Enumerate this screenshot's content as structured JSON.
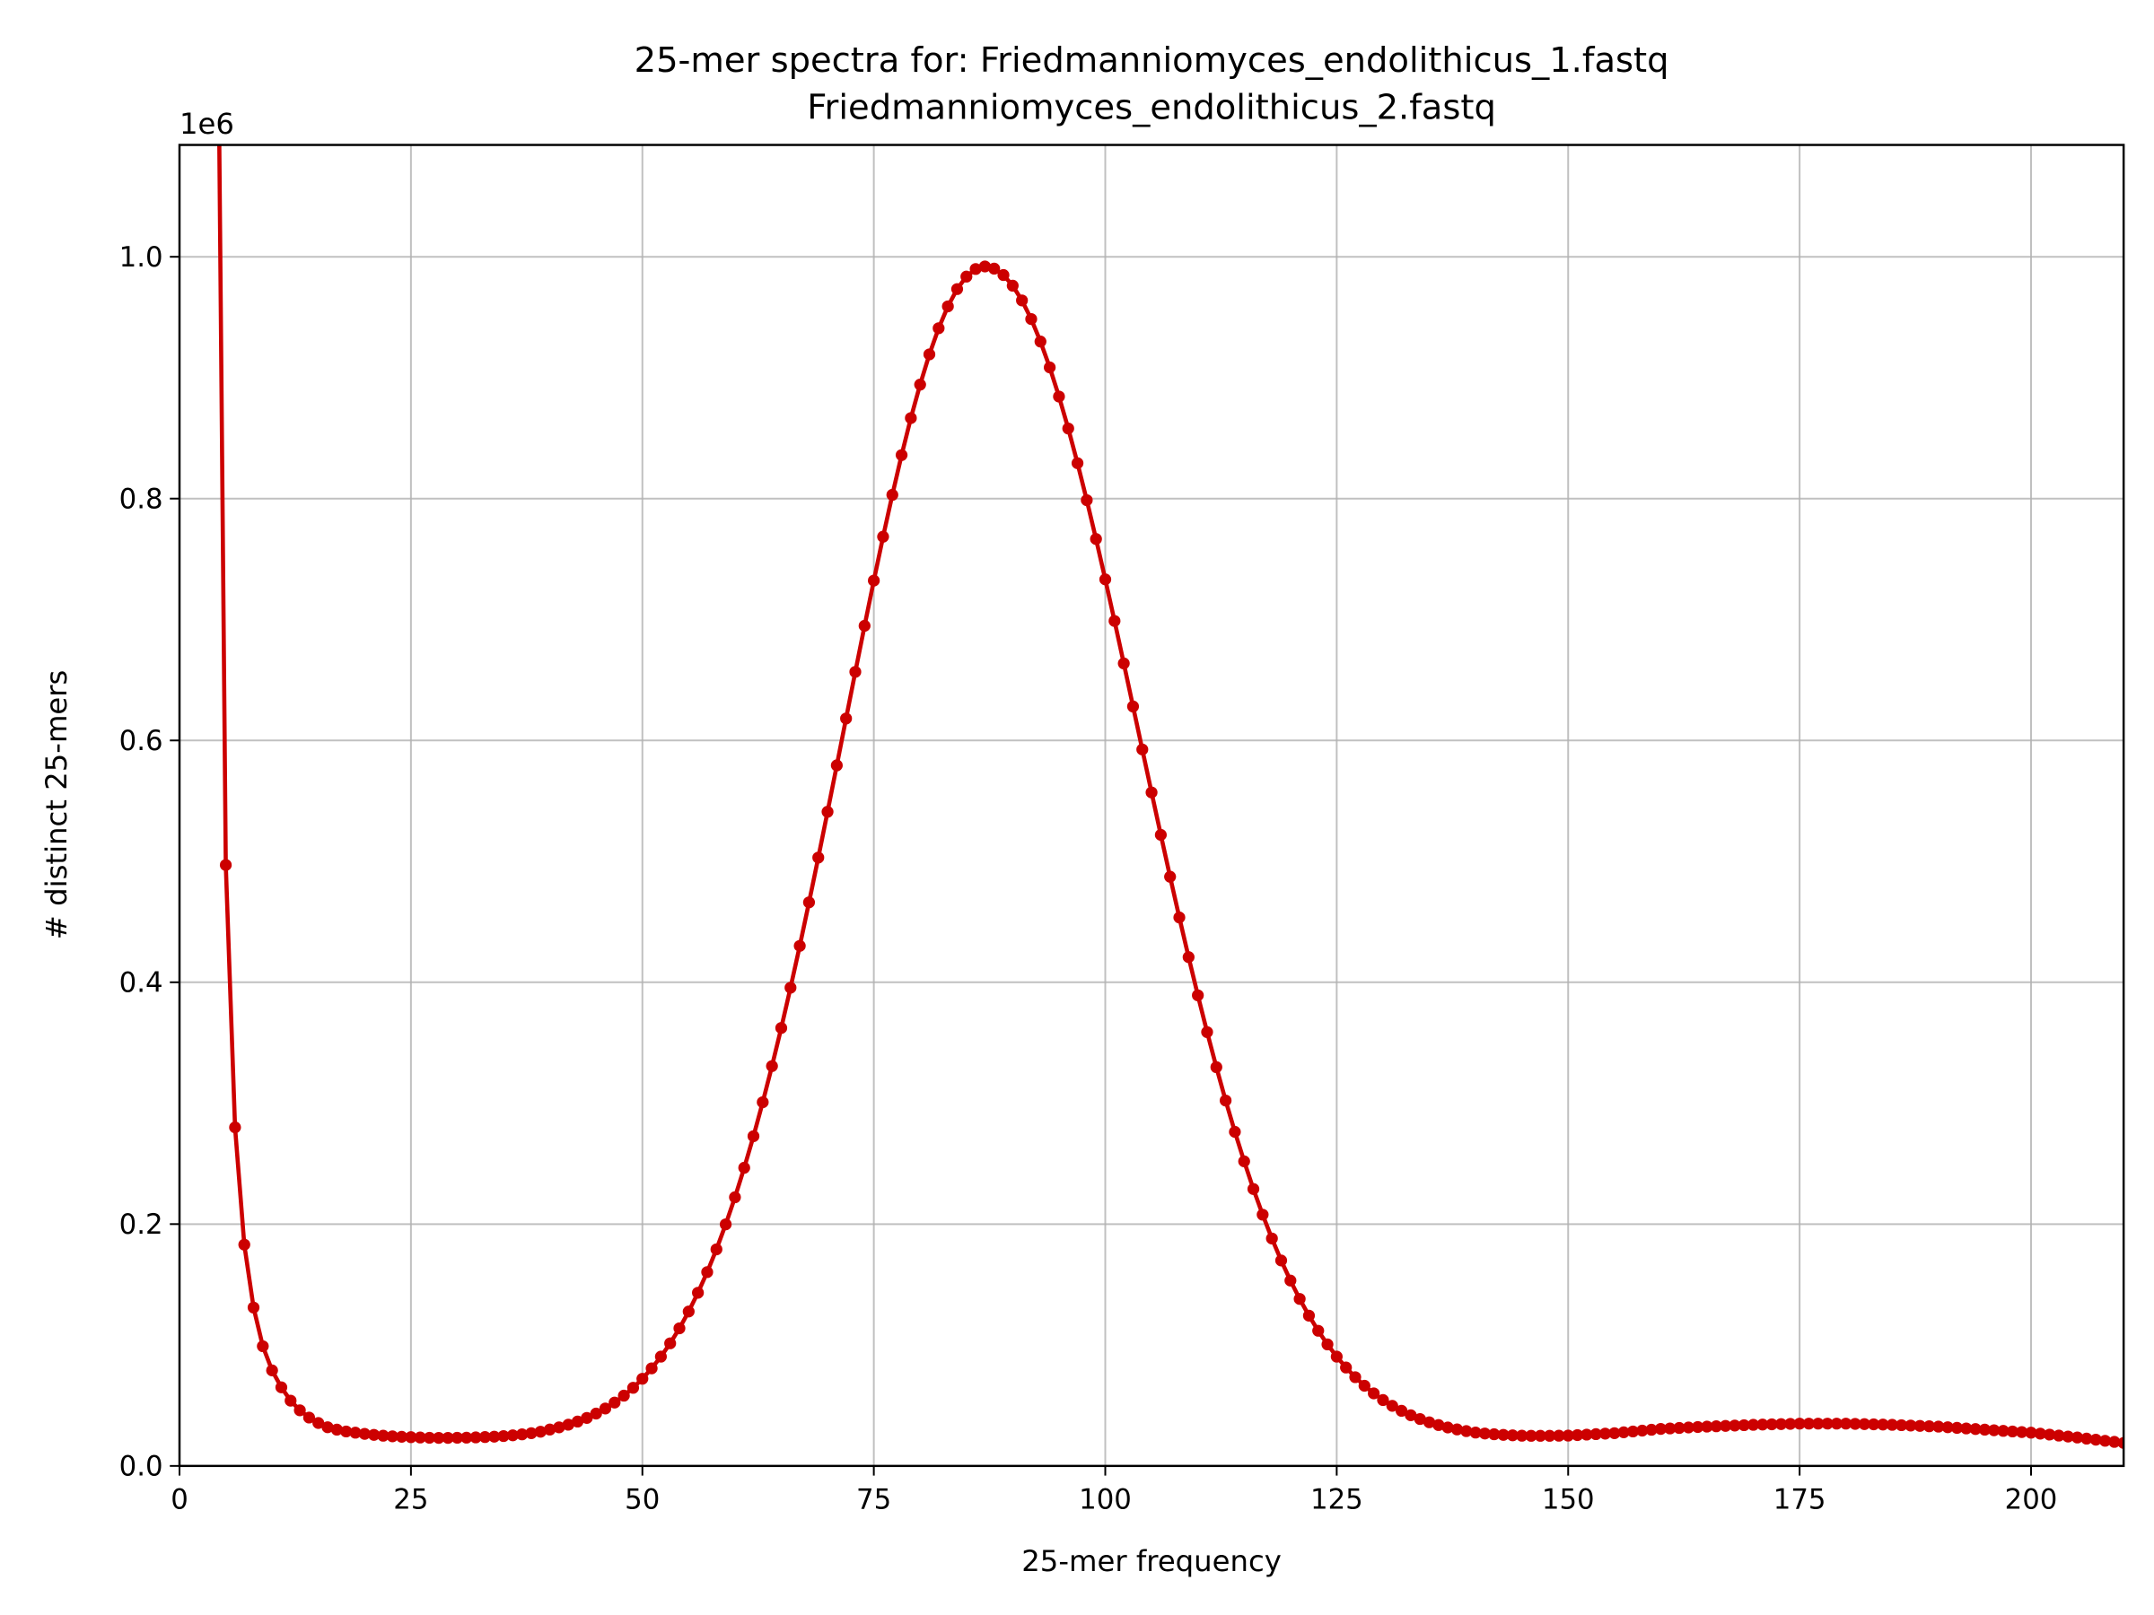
{
  "chart_data": {
    "type": "line",
    "title": [
      "25-mer spectra for: Friedmanniomyces_endolithicus_1.fastq",
      "Friedmanniomyces_endolithicus_2.fastq"
    ],
    "xlabel": "25-mer frequency",
    "ylabel": "# distinct 25-mers",
    "y_offset_label": "1e6",
    "xlim": [
      0,
      210
    ],
    "ylim": [
      0,
      1092500
    ],
    "xticks": [
      0,
      25,
      50,
      75,
      100,
      125,
      150,
      175,
      200
    ],
    "yticks": [
      {
        "value": 0,
        "label": "0.0"
      },
      {
        "value": 200000,
        "label": "0.2"
      },
      {
        "value": 400000,
        "label": "0.4"
      },
      {
        "value": 600000,
        "label": "0.6"
      },
      {
        "value": 800000,
        "label": "0.8"
      },
      {
        "value": 1000000,
        "label": "1.0"
      }
    ],
    "grid": true,
    "color": "#cc0000",
    "x": [
      4,
      5,
      6,
      7,
      8,
      9,
      10,
      11,
      12,
      13,
      14,
      15,
      16,
      17,
      18,
      19,
      20,
      21,
      22,
      23,
      24,
      25,
      26,
      27,
      28,
      29,
      30,
      31,
      32,
      33,
      34,
      35,
      36,
      37,
      38,
      39,
      40,
      41,
      42,
      43,
      44,
      45,
      46,
      47,
      48,
      49,
      50,
      51,
      52,
      53,
      54,
      55,
      56,
      57,
      58,
      59,
      60,
      61,
      62,
      63,
      64,
      65,
      66,
      67,
      68,
      69,
      70,
      71,
      72,
      73,
      74,
      75,
      76,
      77,
      78,
      79,
      80,
      81,
      82,
      83,
      84,
      85,
      86,
      87,
      88,
      89,
      90,
      91,
      92,
      93,
      94,
      95,
      96,
      97,
      98,
      99,
      100,
      101,
      102,
      103,
      104,
      105,
      106,
      107,
      108,
      109,
      110,
      111,
      112,
      113,
      114,
      115,
      116,
      117,
      118,
      119,
      120,
      121,
      122,
      123,
      124,
      125,
      126,
      127,
      128,
      129,
      130,
      131,
      132,
      133,
      134,
      135,
      136,
      137,
      138,
      139,
      140,
      141,
      142,
      143,
      144,
      145,
      146,
      147,
      148,
      149,
      150,
      151,
      152,
      153,
      154,
      155,
      156,
      157,
      158,
      159,
      160,
      161,
      162,
      163,
      164,
      165,
      166,
      167,
      168,
      169,
      170,
      171,
      172,
      173,
      174,
      175,
      176,
      177,
      178,
      179,
      180,
      181,
      182,
      183,
      184,
      185,
      186,
      187,
      188,
      189,
      190,
      191,
      192,
      193,
      194,
      195,
      196,
      197,
      198,
      199,
      200,
      201,
      202,
      203,
      204,
      205,
      206,
      207,
      208,
      209,
      210
    ],
    "values": [
      1348000,
      497000,
      280000,
      183000,
      131000,
      99000,
      79000,
      65000,
      54000,
      46000,
      40000,
      35500,
      32000,
      30000,
      28500,
      27500,
      26500,
      25700,
      25000,
      24500,
      24100,
      23800,
      23500,
      23300,
      23200,
      23200,
      23300,
      23400,
      23600,
      23900,
      24200,
      24700,
      25300,
      26100,
      27100,
      28300,
      30100,
      31900,
      34100,
      36700,
      39700,
      43300,
      47500,
      52400,
      58100,
      64600,
      72100,
      80700,
      90400,
      101400,
      113800,
      127700,
      143200,
      160300,
      179100,
      199800,
      222200,
      246600,
      272700,
      300800,
      330700,
      362200,
      395500,
      430100,
      466100,
      503100,
      541000,
      579400,
      618100,
      656700,
      694800,
      732200,
      768500,
      803100,
      836000,
      866600,
      894300,
      919300,
      940900,
      959000,
      973300,
      983600,
      989900,
      992000,
      990200,
      984900,
      976100,
      963900,
      948500,
      929900,
      908500,
      884400,
      858000,
      829300,
      798700,
      766600,
      733200,
      698800,
      663700,
      628100,
      592500,
      557000,
      521900,
      487300,
      453600,
      420800,
      389200,
      358800,
      329800,
      302200,
      276300,
      251900,
      229000,
      207800,
      188100,
      169900,
      153300,
      138100,
      124300,
      111800,
      100500,
      90400,
      81400,
      73400,
      66300,
      60000,
      54500,
      49700,
      45600,
      41900,
      38800,
      36100,
      33800,
      31800,
      30200,
      28800,
      27600,
      26800,
      26200,
      25700,
      25300,
      25000,
      24900,
      24900,
      24900,
      25000,
      25100,
      25500,
      25900,
      26300,
      26700,
      27100,
      27800,
      28500,
      29200,
      29900,
      30600,
      31000,
      31400,
      31800,
      32200,
      32500,
      32800,
      33100,
      33400,
      33700,
      34000,
      34200,
      34400,
      34600,
      34800,
      35000,
      35000,
      35000,
      35000,
      35000,
      35000,
      34800,
      34600,
      34400,
      34200,
      34000,
      33700,
      33400,
      33100,
      32800,
      32500,
      32000,
      31500,
      31000,
      30500,
      30000,
      29500,
      29000,
      28500,
      28000,
      27500,
      26700,
      25900,
      25100,
      24300,
      23500,
      22600,
      21700,
      20800,
      19900,
      19000
    ]
  }
}
